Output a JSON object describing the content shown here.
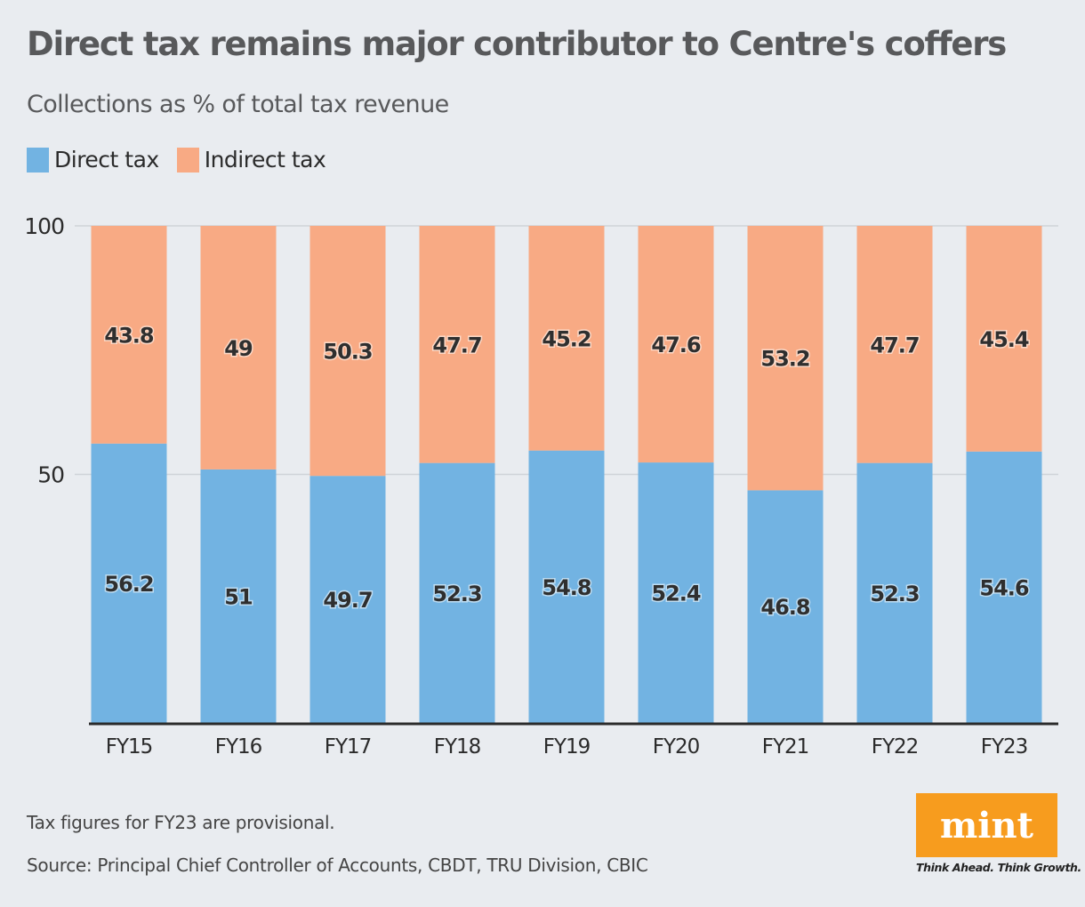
{
  "chart_data": {
    "type": "bar",
    "stacked": true,
    "title": "Direct tax remains major contributor to Centre's coffers",
    "subtitle": "Collections as % of total tax revenue",
    "categories": [
      "FY15",
      "FY16",
      "FY17",
      "FY18",
      "FY19",
      "FY20",
      "FY21",
      "FY22",
      "FY23"
    ],
    "series": [
      {
        "name": "Direct tax",
        "color": "#72b3e2",
        "values": [
          56.2,
          51,
          49.7,
          52.3,
          54.8,
          52.4,
          46.8,
          52.3,
          54.6
        ]
      },
      {
        "name": "Indirect tax",
        "color": "#f8aa84",
        "values": [
          43.8,
          49,
          50.3,
          47.7,
          45.2,
          47.6,
          53.2,
          47.7,
          45.4
        ]
      }
    ],
    "ylim": [
      0,
      100
    ],
    "yticks": [
      "50",
      "100"
    ],
    "ytick_values": [
      50,
      100
    ],
    "grid": true,
    "legend": "top-left",
    "xlabel": "",
    "ylabel": ""
  },
  "footer": {
    "note": "Tax figures for FY23 are provisional.",
    "source": "Source: Principal Chief Controller of Accounts, CBDT, TRU Division, CBIC"
  },
  "logo": {
    "text": "mint",
    "tagline": "Think Ahead. Think Growth.",
    "color": "#f79c1e"
  }
}
